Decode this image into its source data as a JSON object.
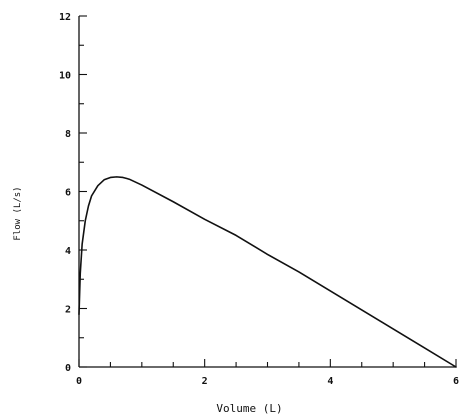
{
  "chart_data": {
    "type": "line",
    "xlabel": "Volume (L)",
    "ylabel": "Flow (L/s)",
    "xlim": [
      0,
      6
    ],
    "ylim": [
      0,
      12
    ],
    "x_ticks": [
      0,
      2,
      4,
      6
    ],
    "y_ticks": [
      0,
      2,
      4,
      6,
      8,
      10,
      12
    ],
    "x_minor_step": 0.5,
    "y_minor_step": 1,
    "grid": false,
    "series": [
      {
        "x": [
          0.0,
          0.02,
          0.05,
          0.1,
          0.15,
          0.2,
          0.3,
          0.4,
          0.5,
          0.6,
          0.7,
          0.8,
          1.0,
          1.5,
          2.0,
          2.5,
          3.0,
          3.5,
          4.0,
          4.5,
          5.0,
          5.5,
          6.0
        ],
        "y": [
          1.8,
          3.2,
          4.2,
          5.0,
          5.5,
          5.85,
          6.2,
          6.4,
          6.48,
          6.5,
          6.48,
          6.42,
          6.22,
          5.65,
          5.05,
          4.5,
          3.85,
          3.25,
          2.6,
          1.95,
          1.3,
          0.65,
          0.0
        ]
      }
    ]
  }
}
